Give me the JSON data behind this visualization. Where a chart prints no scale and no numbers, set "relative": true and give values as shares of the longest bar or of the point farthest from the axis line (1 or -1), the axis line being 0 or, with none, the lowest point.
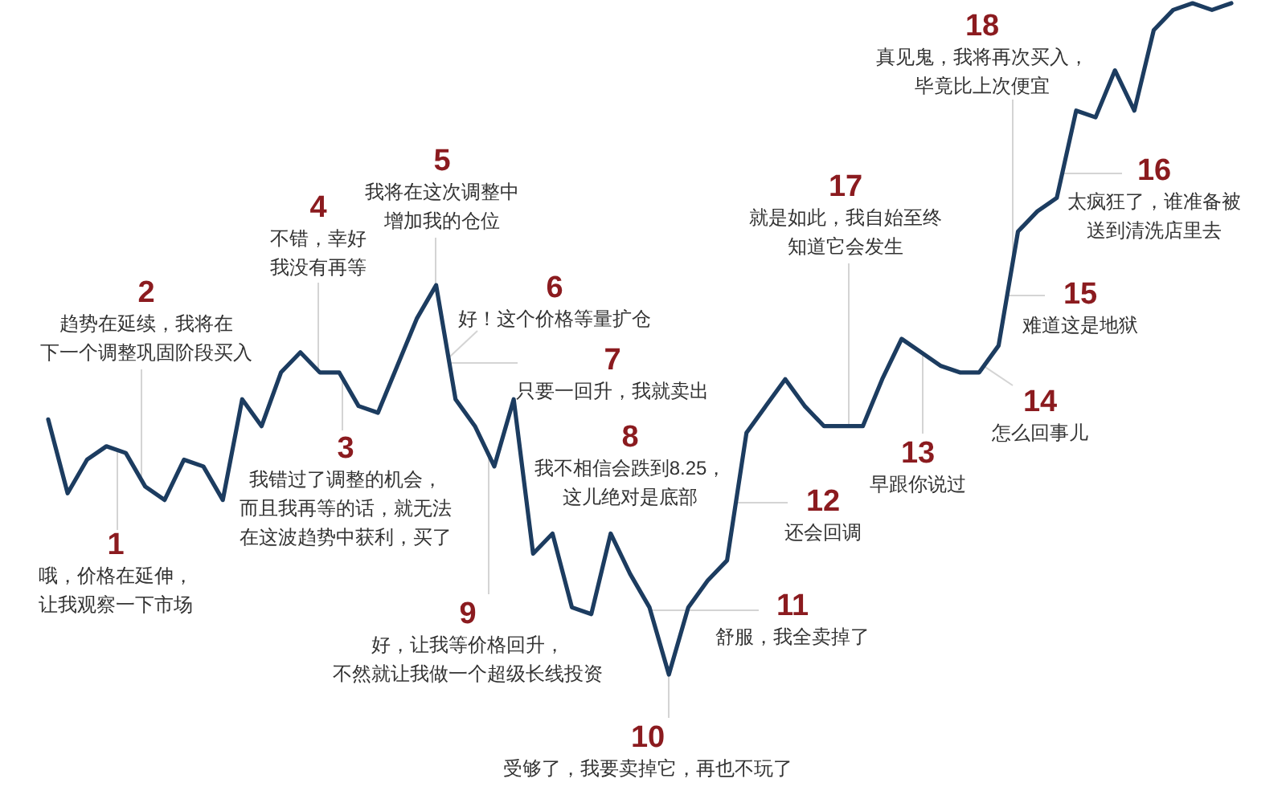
{
  "chart_data": {
    "type": "line",
    "relative": true,
    "tick_labels": false,
    "color": "#1c3c60",
    "categories": [
      null,
      null,
      null,
      null,
      null,
      null,
      null,
      null,
      null,
      null,
      null,
      null,
      null,
      null,
      null,
      null,
      null,
      null,
      null,
      null,
      null,
      null,
      null,
      null,
      null,
      null,
      null,
      null,
      null,
      null,
      null,
      null,
      null,
      null,
      null,
      null,
      null,
      null,
      null,
      null,
      null,
      null,
      null,
      null,
      null,
      null,
      null,
      null,
      null,
      null,
      null,
      null,
      null,
      null,
      null,
      null,
      null,
      null,
      null,
      null,
      null,
      null
    ],
    "values": [
      0.38,
      0.27,
      0.32,
      0.34,
      0.33,
      0.28,
      0.26,
      0.32,
      0.31,
      0.26,
      0.41,
      0.37,
      0.45,
      0.48,
      0.45,
      0.45,
      0.4,
      0.39,
      0.46,
      0.53,
      0.58,
      0.41,
      0.37,
      0.31,
      0.41,
      0.18,
      0.21,
      0.1,
      0.09,
      0.21,
      0.15,
      0.1,
      0,
      0.1,
      0.14,
      0.17,
      0.36,
      0.4,
      0.44,
      0.4,
      0.37,
      0.37,
      0.37,
      0.44,
      0.5,
      0.48,
      0.46,
      0.45,
      0.45,
      0.49,
      0.66,
      0.69,
      0.71,
      0.84,
      0.83,
      0.9,
      0.84,
      0.96,
      0.99,
      1,
      0.99,
      1
    ],
    "annotations": [
      "1",
      "哦，价格在延伸，让我观察一下市场",
      "2",
      "趋势在延续，我将在下一个调整巩固阶段买入",
      "3",
      "我错过了调整的机会，而且我再等的话，就无法在这波趋势中获利，买了",
      "4",
      "不错，幸好我没有再等",
      "5",
      "我将在这次调整中增加我的仓位",
      "6",
      "好！这个价格等量扩仓",
      "7",
      "只要一回升，我就卖出",
      "8",
      "我不相信会跌到8.25，这儿绝对是底部",
      "9",
      "好，让我等价格回升，不然就让我做一个超级长线投资",
      "10",
      "受够了，我要卖掉它，再也不玩了",
      "11",
      "舒服，我全卖掉了",
      "12",
      "还会回调",
      "13",
      "早跟你说过",
      "14",
      "怎么回事儿",
      "15",
      "难道这是地狱",
      "16",
      "太疯狂了，谁准备被送到清洗店里去",
      "17",
      "就是如此，我自始至终知道它会发生",
      "18",
      "真见鬼，我将再次买入，毕竟比上次便宜"
    ]
  }
}
